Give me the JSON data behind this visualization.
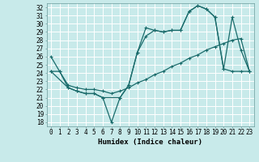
{
  "xlabel": "Humidex (Indice chaleur)",
  "bg_color": "#c8eaea",
  "grid_color": "#ffffff",
  "line_color": "#1a6b6b",
  "xlim": [
    -0.5,
    23.5
  ],
  "ylim": [
    17.5,
    32.5
  ],
  "xticks": [
    0,
    1,
    2,
    3,
    4,
    5,
    6,
    7,
    8,
    9,
    10,
    11,
    12,
    13,
    14,
    15,
    16,
    17,
    18,
    19,
    20,
    21,
    22,
    23
  ],
  "yticks": [
    18,
    19,
    20,
    21,
    22,
    23,
    24,
    25,
    26,
    27,
    28,
    29,
    30,
    31,
    32
  ],
  "line1_x": [
    0,
    1,
    2,
    3,
    4,
    5,
    6,
    7,
    8,
    9,
    10,
    11,
    12,
    13,
    14,
    15,
    16,
    17,
    18,
    19,
    20,
    21,
    22,
    23
  ],
  "line1_y": [
    26.0,
    24.2,
    22.2,
    21.8,
    21.5,
    21.5,
    21.0,
    18.0,
    21.0,
    22.5,
    26.5,
    29.5,
    29.2,
    29.0,
    29.2,
    29.2,
    31.5,
    32.2,
    31.8,
    30.8,
    24.5,
    24.2,
    24.2,
    24.2
  ],
  "line2_x": [
    0,
    2,
    3,
    4,
    5,
    6,
    8,
    9,
    10,
    11,
    12,
    13,
    14,
    15,
    16,
    17,
    18,
    19,
    20,
    21,
    22,
    23
  ],
  "line2_y": [
    24.2,
    22.2,
    21.8,
    21.5,
    21.5,
    21.0,
    21.0,
    22.5,
    26.5,
    28.5,
    29.2,
    29.0,
    29.2,
    29.2,
    31.5,
    32.2,
    31.8,
    30.8,
    24.5,
    30.8,
    26.8,
    24.2
  ],
  "line3_x": [
    0,
    1,
    2,
    3,
    4,
    5,
    6,
    7,
    8,
    9,
    10,
    11,
    12,
    13,
    14,
    15,
    16,
    17,
    18,
    19,
    20,
    21,
    22,
    23
  ],
  "line3_y": [
    24.2,
    24.2,
    22.5,
    22.2,
    22.0,
    22.0,
    21.8,
    21.5,
    21.8,
    22.2,
    22.8,
    23.2,
    23.8,
    24.2,
    24.8,
    25.2,
    25.8,
    26.2,
    26.8,
    27.2,
    27.6,
    28.0,
    28.2,
    24.2
  ]
}
